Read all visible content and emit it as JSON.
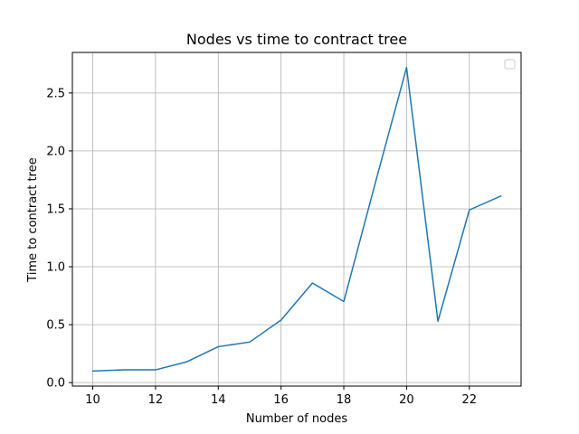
{
  "chart_data": {
    "type": "line",
    "title": "Nodes vs time to contract tree",
    "xlabel": "Number of nodes",
    "ylabel": "Time to contract tree",
    "x": [
      10,
      11,
      12,
      13,
      14,
      15,
      16,
      17,
      18,
      19,
      20,
      21,
      22,
      23
    ],
    "series": [
      {
        "values": [
          0.1,
          0.11,
          0.11,
          0.18,
          0.31,
          0.35,
          0.54,
          0.86,
          0.7,
          1.72,
          2.72,
          0.53,
          1.49,
          1.61
        ],
        "color": "#1f77b4"
      }
    ],
    "xticks": [
      10,
      12,
      14,
      16,
      18,
      20,
      22
    ],
    "xtick_labels": [
      "10",
      "12",
      "14",
      "16",
      "18",
      "20",
      "22"
    ],
    "yticks": [
      0.0,
      0.5,
      1.0,
      1.5,
      2.0,
      2.5
    ],
    "ytick_labels": [
      "0.0",
      "0.5",
      "1.0",
      "1.5",
      "2.0",
      "2.5"
    ],
    "xlim": [
      9.35,
      23.65
    ],
    "ylim": [
      -0.03,
      2.85
    ],
    "grid": true,
    "legend": "upper right (empty)"
  }
}
